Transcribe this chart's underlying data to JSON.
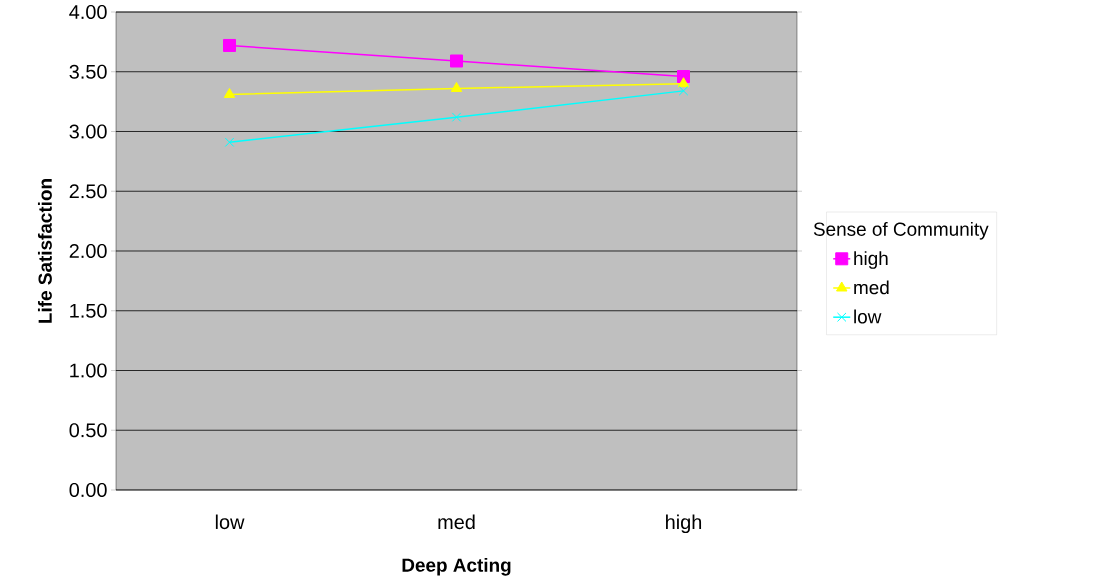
{
  "chart_data": {
    "type": "line",
    "xlabel": "Deep Acting",
    "ylabel": "Life Satisfaction",
    "legend_title": "Sense of Community",
    "categories": [
      "low",
      "med",
      "high"
    ],
    "series": [
      {
        "name": "high",
        "color": "#ff00ff",
        "marker": "square",
        "values": [
          3.72,
          3.59,
          3.46
        ]
      },
      {
        "name": "med",
        "color": "#ffff00",
        "marker": "triangle",
        "values": [
          3.31,
          3.36,
          3.4
        ]
      },
      {
        "name": "low",
        "color": "#00ffff",
        "marker": "cross",
        "values": [
          2.91,
          3.12,
          3.34
        ]
      }
    ],
    "ylim": [
      0,
      4
    ],
    "yticks": [
      {
        "value": 0,
        "label": "0.00"
      },
      {
        "value": 0.5,
        "label": "0.50"
      },
      {
        "value": 1,
        "label": "1.00"
      },
      {
        "value": 1.5,
        "label": "1.50"
      },
      {
        "value": 2,
        "label": "2.00"
      },
      {
        "value": 2.5,
        "label": "2.50"
      },
      {
        "value": 3,
        "label": "3.00"
      },
      {
        "value": 3.5,
        "label": "3.50"
      },
      {
        "value": 4,
        "label": "4.00"
      }
    ],
    "grid": "y",
    "legend": "right",
    "line_style": "solid"
  }
}
